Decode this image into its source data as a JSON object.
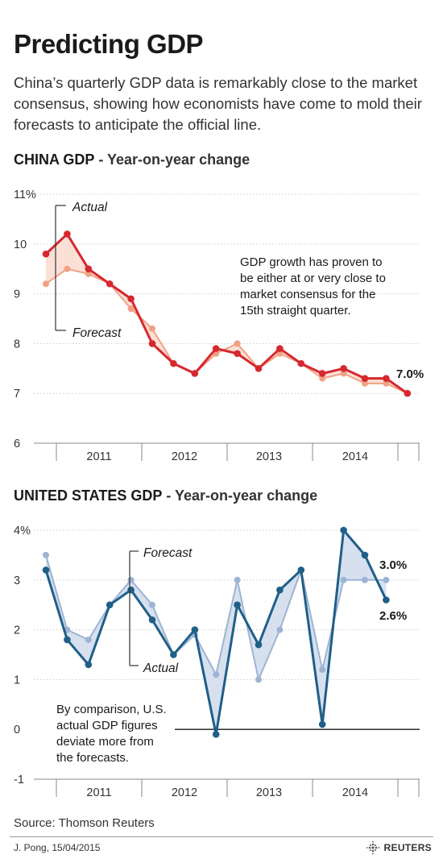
{
  "header": {
    "title": "Predicting GDP",
    "subtitle": "China’s quarterly GDP data is remarkably close to the market consensus, showing how economists have come to mold their forecasts to anticipate the official line."
  },
  "charts": {
    "china": {
      "heading_bold": "CHINA GDP",
      "heading_rest": " - Year-on-year change"
    },
    "us": {
      "heading_bold": "UNITED STATES GDP",
      "heading_rest": " - Year-on-year change"
    }
  },
  "footer": {
    "source": "Source: Thomson Reuters",
    "credit": "J. Pong, 15/04/2015",
    "brand": "REUTERS",
    "brand_icon": "reuters-dots-logo-icon"
  },
  "colors": {
    "china_actual": "#d6282f",
    "china_forecast": "#f1a184",
    "china_fill": "#fbe0d6",
    "us_actual": "#1f5f88",
    "us_forecast": "#9db4d3",
    "us_fill": "#d7e0ee",
    "grid": "#cccccc",
    "text": "#1a1a1a"
  },
  "chart_data": [
    {
      "type": "line",
      "title": "CHINA GDP - Year-on-year change",
      "x_labels": [
        "2011",
        "2012",
        "2013",
        "2014"
      ],
      "ylim": [
        6,
        11
      ],
      "y_ticks": [
        "6",
        "7",
        "8",
        "9",
        "10",
        "11%"
      ],
      "series": [
        {
          "name": "Actual",
          "values": [
            9.8,
            10.2,
            9.5,
            9.2,
            8.9,
            8.0,
            7.6,
            7.4,
            7.9,
            7.8,
            7.5,
            7.9,
            7.6,
            7.4,
            7.5,
            7.3,
            7.3,
            7.0
          ]
        },
        {
          "name": "Forecast",
          "values": [
            9.2,
            9.5,
            9.4,
            9.2,
            8.7,
            8.3,
            7.6,
            7.4,
            7.8,
            8.0,
            7.5,
            7.8,
            7.6,
            7.3,
            7.4,
            7.2,
            7.2,
            7.0
          ]
        }
      ],
      "annotations": {
        "note": [
          "GDP growth has proven to",
          "be either at or very close to",
          "market consensus for the",
          "15th straight quarter."
        ],
        "end_label": "7.0%"
      }
    },
    {
      "type": "line",
      "title": "UNITED STATES GDP - Year-on-year change",
      "x_labels": [
        "2011",
        "2012",
        "2013",
        "2014"
      ],
      "ylim": [
        -1,
        4
      ],
      "y_ticks": [
        "-1",
        "0",
        "1",
        "2",
        "3",
        "4%"
      ],
      "series": [
        {
          "name": "Actual",
          "values": [
            3.2,
            1.8,
            1.3,
            2.5,
            2.8,
            2.2,
            1.5,
            2.0,
            -0.1,
            2.5,
            1.7,
            2.8,
            3.2,
            0.1,
            4.0,
            3.5,
            2.6
          ]
        },
        {
          "name": "Forecast",
          "values": [
            3.5,
            2.0,
            1.8,
            2.5,
            3.0,
            2.5,
            1.5,
            1.9,
            1.1,
            3.0,
            1.0,
            2.0,
            3.2,
            1.2,
            3.0,
            3.0,
            3.0
          ]
        }
      ],
      "annotations": {
        "note": [
          "By comparison, U.S.",
          "actual GDP figures",
          "deviate more from",
          "the forecasts."
        ],
        "forecast_end_label": "3.0%",
        "actual_end_label": "2.6%"
      }
    }
  ]
}
